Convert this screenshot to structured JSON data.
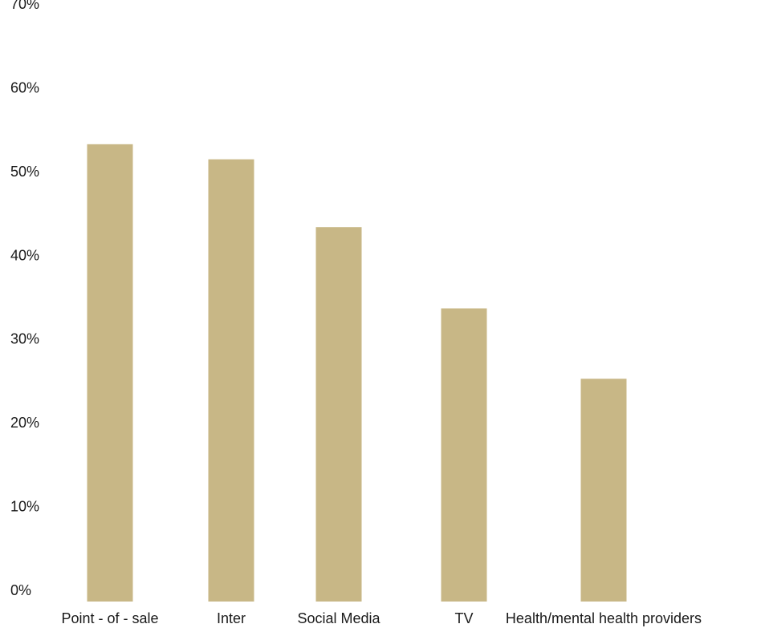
{
  "chart_data": {
    "type": "bar",
    "categories": [
      "Point - of - sale",
      "Inter",
      "Social Media",
      "TV",
      "Health/mental health providers"
    ],
    "values": [
      54.6,
      52.8,
      44.7,
      35.0,
      26.6
    ],
    "value_unit": "%",
    "title": "",
    "xlabel": "",
    "ylabel": "",
    "ylim": [
      0,
      70
    ],
    "yticks": [
      "0%",
      "10%",
      "20%",
      "30%",
      "40%",
      "50%",
      "60%",
      "70%"
    ],
    "grid": false,
    "legend": "none",
    "bar_color": "#c8b786"
  }
}
